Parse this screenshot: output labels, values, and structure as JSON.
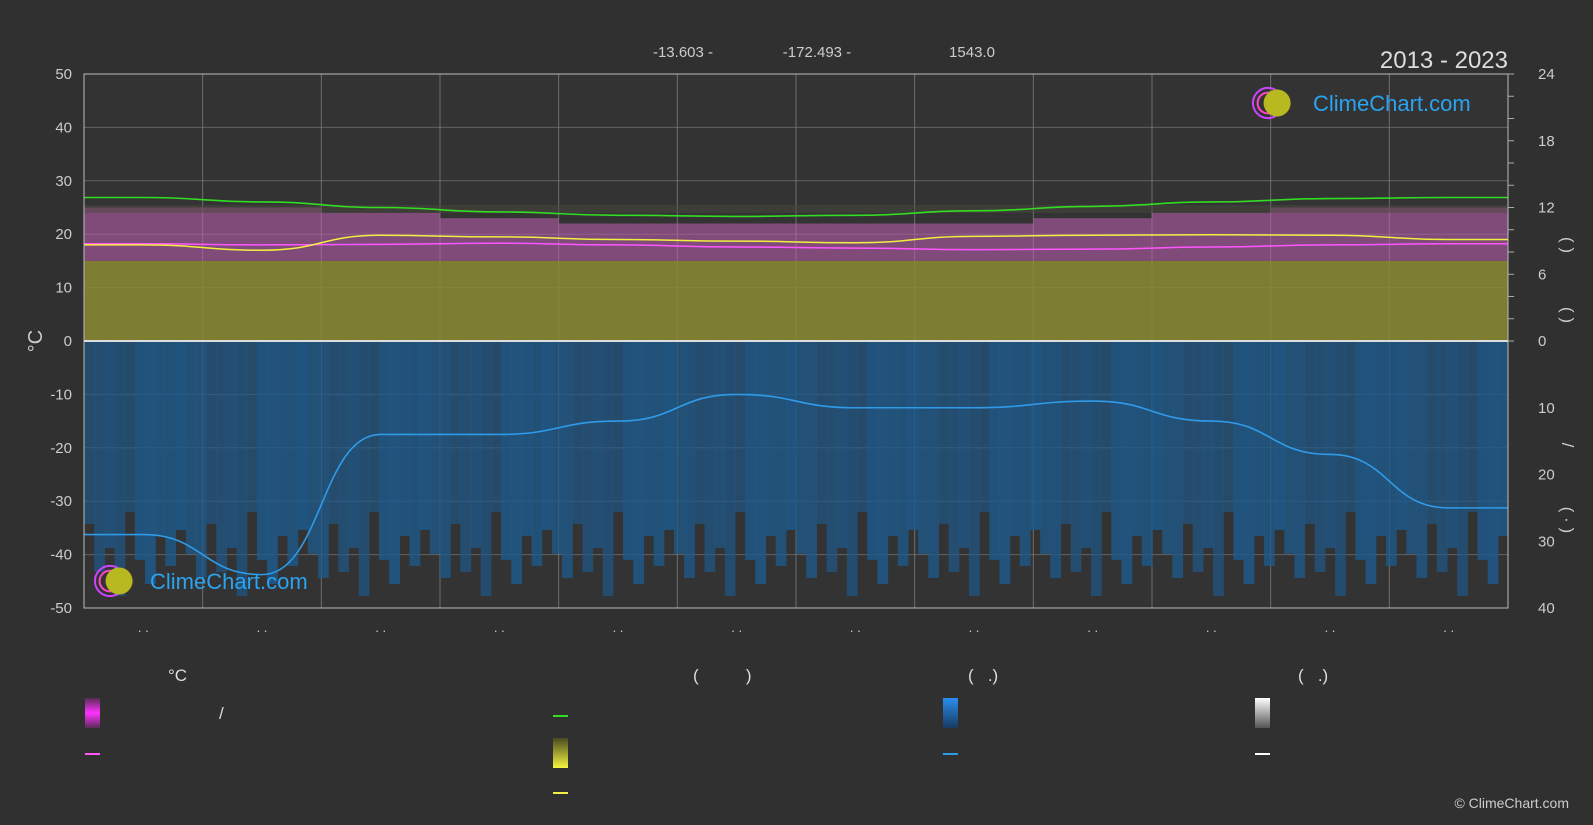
{
  "header": {
    "coords": [
      "-13.603 -",
      "-172.493 -",
      "1543.0"
    ],
    "years": "2013 - 2023"
  },
  "watermark": "ClimeChart.com",
  "copyright": "© ClimeChart.com",
  "legend": {
    "col1_title": "°C",
    "col1_slash": "/",
    "col2_title": "(          )",
    "col3_title": "(   .)",
    "col4_title": "(   .)"
  },
  "colors": {
    "background": "#303030",
    "sunshine_line": "#33dd22",
    "daylight_line": "#33dd22",
    "sunshine_fill": "#8c8c32",
    "temp_range": "#c15fb3",
    "temp_mean_line": "#ff55ff",
    "temp_max_line": "#f0f040",
    "precip_fill": "#1e5a8c",
    "precip_line": "#2f9be8",
    "brand_blue": "#2aa3f0"
  },
  "chart_data": {
    "type": "area",
    "title": "",
    "ylabel_left": "°C",
    "ylim_left": [
      -50,
      50
    ],
    "yticks_left": [
      50,
      40,
      30,
      20,
      10,
      0,
      -10,
      -20,
      -30,
      -40,
      -50
    ],
    "yticks_right_upper": [
      24,
      18,
      12,
      6,
      0
    ],
    "yticks_right_lower": [
      10,
      20,
      30,
      40
    ],
    "right_axis_labels": [
      "(   )",
      "(   )",
      "/",
      "(  ·  )"
    ],
    "xtick_labels": [
      ". .",
      ". .",
      ". .",
      ". .",
      ". .",
      ". .",
      ". .",
      ". .",
      ". .",
      ". .",
      ". .",
      ". ."
    ],
    "months": 12,
    "grid": true,
    "series": [
      {
        "kind": "daylight_hours",
        "values": [
          12.9,
          12.5,
          12.0,
          11.6,
          11.3,
          11.2,
          11.3,
          11.7,
          12.1,
          12.5,
          12.8,
          12.9
        ]
      },
      {
        "kind": "temperature_mean",
        "values": [
          18.2,
          18.0,
          18.1,
          18.3,
          18.0,
          17.6,
          17.4,
          17.1,
          17.2,
          17.6,
          18.0,
          18.2
        ]
      },
      {
        "kind": "temperature_max",
        "values": [
          18.0,
          17.0,
          19.8,
          19.5,
          19.0,
          18.7,
          18.4,
          19.6,
          19.8,
          19.9,
          19.8,
          19.0
        ]
      },
      {
        "kind": "temperature_range_band",
        "low": [
          15,
          15,
          15,
          15,
          15,
          15,
          15,
          15,
          15,
          15,
          15,
          15
        ],
        "high": [
          25,
          25,
          24,
          23,
          22,
          22,
          22,
          22,
          23,
          24,
          25,
          25
        ]
      },
      {
        "kind": "precipitation_mm",
        "values": [
          29,
          35,
          14,
          14,
          12,
          8,
          10,
          10,
          9,
          12,
          17,
          25
        ]
      }
    ]
  }
}
